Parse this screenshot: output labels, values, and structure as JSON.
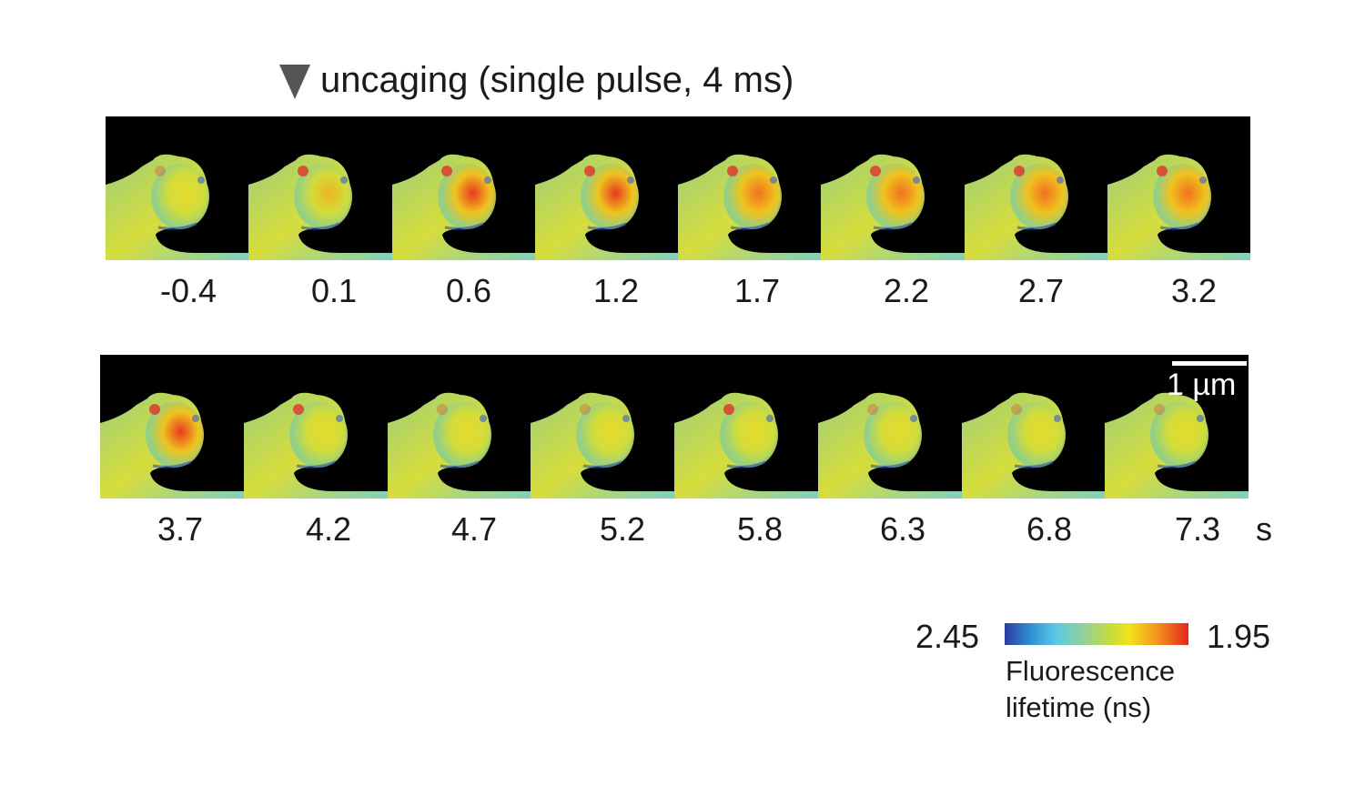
{
  "title": {
    "marker_icon": "down-triangle-icon",
    "text": "uncaging (single pulse, 4 ms)"
  },
  "row1": {
    "time_labels": [
      "-0.4",
      "0.1",
      "0.6",
      "1.2",
      "1.7",
      "2.2",
      "2.7",
      "3.2"
    ]
  },
  "row2": {
    "time_labels": [
      "3.7",
      "4.2",
      "4.7",
      "5.2",
      "5.8",
      "6.3",
      "6.8",
      "7.3"
    ],
    "unit": "s"
  },
  "scale_bar": {
    "label": "1 µm"
  },
  "colorbar": {
    "left_label": "2.45",
    "right_label": "1.95",
    "caption_line1": "Fluorescence",
    "caption_line2": "lifetime (ns)",
    "colors": [
      "#2c3b9c",
      "#2f8fd6",
      "#5cc8e4",
      "#8fd0a0",
      "#c8dc3c",
      "#f3e21b",
      "#f59a1c",
      "#e3261f"
    ]
  },
  "frame_heat": {
    "row1": [
      0.25,
      0.45,
      0.95,
      0.9,
      0.7,
      0.75,
      0.8,
      0.65
    ],
    "row2": [
      0.85,
      0.35,
      0.3,
      0.3,
      0.4,
      0.15,
      0.3,
      0.25
    ]
  }
}
